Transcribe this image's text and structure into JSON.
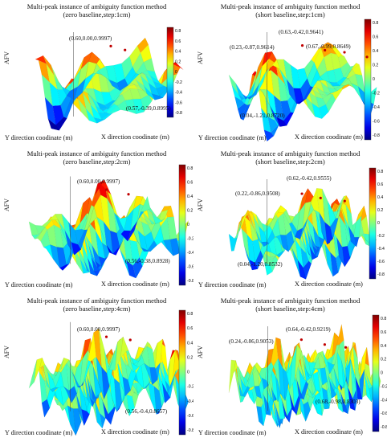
{
  "panels": [
    {
      "title_line1": "Multi-peak instance of ambiguity function method",
      "title_line2": "(zero baseline,step:1cm)",
      "ylabel": "AFV",
      "xlabel_y": "Y direction coodinate (m)",
      "xlabel_x": "X direction coodinate (m)",
      "annotations": [
        "(0.60,0.00,0.9997)",
        "(0.57,-0.39,0.8995)"
      ],
      "colorbar_ticks": [
        "0.8",
        "0.6",
        "0.4",
        "0.2",
        "0",
        "-0.2",
        "-0.4",
        "-0.6",
        "-0.8"
      ]
    },
    {
      "title_line1": "Multi-peak instance of ambiguity function method",
      "title_line2": "(short baseline,step:1cm)",
      "ylabel": "AFV",
      "xlabel_y": "Y direction coodinate (m)",
      "xlabel_x": "X direction coodinate (m)",
      "annotations": [
        "(0.63,-0.42,0.9641)",
        "(0.23,-0.87,0.9614)",
        "(0.67,-0.99,0.8649)",
        "(0.04,-1.21,0.8720)"
      ],
      "colorbar_ticks": [
        "0.8",
        "0.6",
        "0.4",
        "0.2",
        "0",
        "-0.2",
        "-0.4",
        "-0.6",
        "-0.8"
      ]
    },
    {
      "title_line1": "Multi-peak instance of ambiguity function method",
      "title_line2": "(zero baseline,step:2cm)",
      "ylabel": "AFV",
      "xlabel_y": "Y direction coodinate (m)",
      "xlabel_x": "X direction coodinate (m)",
      "annotations": [
        "(0.60,0.00,0.9997)",
        "(0.56,-0.38,0.8928)"
      ],
      "colorbar_ticks": [
        "0.8",
        "0.6",
        "0.4",
        "0.2",
        "0",
        "-0.2",
        "-0.4",
        "-0.6",
        "-0.8"
      ]
    },
    {
      "title_line1": "Multi-peak instance of ambiguity function method",
      "title_line2": "(short baseline,step:2cm)",
      "ylabel": "AFV",
      "xlabel_y": "Y direction coodinate (m)",
      "xlabel_x": "X direction coodinate (m)",
      "annotations": [
        "(0.62,-0.42,0.9555)",
        "(0.22,-0.86,0.9508)",
        "(0.04,-1.20,0.8532)"
      ],
      "colorbar_ticks": [
        "0.8",
        "0.6",
        "0.4",
        "0.2",
        "0",
        "-0.2",
        "-0.4",
        "-0.6",
        "-0.8"
      ]
    },
    {
      "title_line1": "Multi-peak instance of ambiguity function method",
      "title_line2": "(zero baseline,step:4cm)",
      "ylabel": "AFV",
      "xlabel_y": "Y direction coodinate (m)",
      "xlabel_x": "X direction coodinate (m)",
      "annotations": [
        "(0.60,0.00,0.9997)",
        "(0.56,-0.4,0.8657)"
      ],
      "colorbar_ticks": [
        "0.8",
        "0.6",
        "0.4",
        "0.2",
        "0",
        "-0.2",
        "-0.4",
        "-0.6",
        "-0.8"
      ]
    },
    {
      "title_line1": "Multi-peak instance of ambiguity function method",
      "title_line2": "(short baseline,step:4cm)",
      "ylabel": "AFV",
      "xlabel_y": "Y direction coodinate (m)",
      "xlabel_x": "X direction coodinate (m)",
      "annotations": [
        "(0.64,-0.42,0.9219)",
        "(0.24,-0.86,0.9053)",
        "(0.68,-0.98,0.8303)"
      ],
      "colorbar_ticks": [
        "0.8",
        "0.6",
        "0.4",
        "0.2",
        "0",
        "-0.2",
        "-0.4",
        "-0.6",
        "-0.8"
      ]
    }
  ],
  "chart_data": [
    {
      "type": "surface",
      "title": "Multi-peak instance of ambiguity function method (zero baseline,step:1cm)",
      "zlabel": "AFV",
      "xlabel": "X direction coodinate (m)",
      "ylabel": "Y direction coodinate (m)",
      "zlim": [
        -0.8,
        1.0
      ],
      "colormap": "jet",
      "peaks": [
        {
          "x": 0.6,
          "y": 0.0,
          "z": 0.9997
        },
        {
          "x": 0.57,
          "y": -0.39,
          "z": 0.8995
        }
      ]
    },
    {
      "type": "surface",
      "title": "Multi-peak instance of ambiguity function method (short baseline,step:1cm)",
      "zlabel": "AFV",
      "xlabel": "X direction coodinate (m)",
      "ylabel": "Y direction coodinate (m)",
      "zlim": [
        -0.8,
        1.0
      ],
      "colormap": "jet",
      "peaks": [
        {
          "x": 0.63,
          "y": -0.42,
          "z": 0.9641
        },
        {
          "x": 0.23,
          "y": -0.87,
          "z": 0.9614
        },
        {
          "x": 0.67,
          "y": -0.99,
          "z": 0.8649
        },
        {
          "x": 0.04,
          "y": -1.21,
          "z": 0.872
        }
      ]
    },
    {
      "type": "surface",
      "title": "Multi-peak instance of ambiguity function method (zero baseline,step:2cm)",
      "zlabel": "AFV",
      "xlabel": "X direction coodinate (m)",
      "ylabel": "Y direction coodinate (m)",
      "zlim": [
        -0.8,
        1.0
      ],
      "colormap": "jet",
      "peaks": [
        {
          "x": 0.6,
          "y": 0.0,
          "z": 0.9997
        },
        {
          "x": 0.56,
          "y": -0.38,
          "z": 0.8928
        }
      ]
    },
    {
      "type": "surface",
      "title": "Multi-peak instance of ambiguity function method (short baseline,step:2cm)",
      "zlabel": "AFV",
      "xlabel": "X direction coodinate (m)",
      "ylabel": "Y direction coodinate (m)",
      "zlim": [
        -0.8,
        1.0
      ],
      "colormap": "jet",
      "peaks": [
        {
          "x": 0.62,
          "y": -0.42,
          "z": 0.9555
        },
        {
          "x": 0.22,
          "y": -0.86,
          "z": 0.9508
        },
        {
          "x": 0.04,
          "y": -1.2,
          "z": 0.8532
        }
      ]
    },
    {
      "type": "surface",
      "title": "Multi-peak instance of ambiguity function method (zero baseline,step:4cm)",
      "zlabel": "AFV",
      "xlabel": "X direction coodinate (m)",
      "ylabel": "Y direction coodinate (m)",
      "zlim": [
        -0.8,
        1.0
      ],
      "colormap": "jet",
      "peaks": [
        {
          "x": 0.6,
          "y": 0.0,
          "z": 0.9997
        },
        {
          "x": 0.56,
          "y": -0.4,
          "z": 0.8657
        }
      ]
    },
    {
      "type": "surface",
      "title": "Multi-peak instance of ambiguity function method (short baseline,step:4cm)",
      "zlabel": "AFV",
      "xlabel": "X direction coodinate (m)",
      "ylabel": "Y direction coodinate (m)",
      "zlim": [
        -0.8,
        1.0
      ],
      "colormap": "jet",
      "peaks": [
        {
          "x": 0.64,
          "y": -0.42,
          "z": 0.9219
        },
        {
          "x": 0.24,
          "y": -0.86,
          "z": 0.9053
        },
        {
          "x": 0.68,
          "y": -0.98,
          "z": 0.8303
        }
      ]
    }
  ]
}
